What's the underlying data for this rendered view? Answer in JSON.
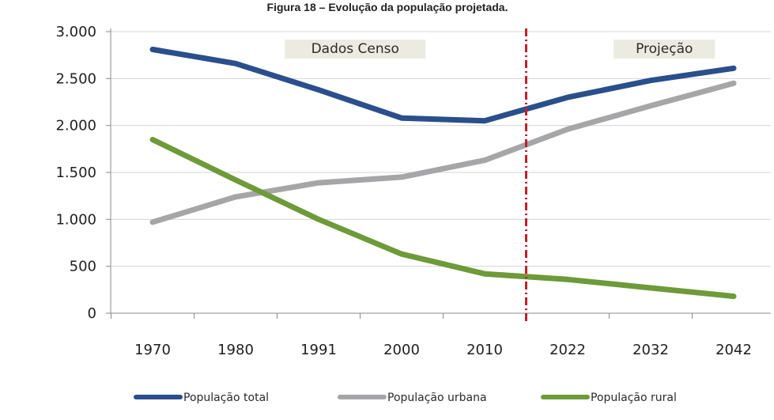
{
  "caption": "Figura 18 – Evolução da população projetada.",
  "chart_data": {
    "type": "line",
    "title": "",
    "xlabel": "",
    "ylabel": "",
    "categories": [
      "1970",
      "1980",
      "1991",
      "2000",
      "2010",
      "2022",
      "2032",
      "2042"
    ],
    "ylim": [
      0,
      3000
    ],
    "yticks": [
      0,
      500,
      1000,
      1500,
      2000,
      2500,
      3000
    ],
    "ytick_labels": [
      "0",
      "500",
      "1.000",
      "1.500",
      "2.000",
      "2.500",
      "3.000"
    ],
    "grid": true,
    "legend_position": "bottom",
    "series": [
      {
        "name": "População total",
        "color": "#2a4f8c",
        "values": [
          2810,
          2660,
          2380,
          2080,
          2050,
          2300,
          2480,
          2610
        ]
      },
      {
        "name": "População urbana",
        "color": "#a6a6a8",
        "values": [
          970,
          1240,
          1390,
          1450,
          1630,
          1960,
          2210,
          2450
        ]
      },
      {
        "name": "População rural",
        "color": "#6e9a3a",
        "values": [
          1850,
          1420,
          1000,
          630,
          420,
          360,
          270,
          180
        ]
      }
    ],
    "annotations": [
      {
        "label": "Dados Censo",
        "region": "census"
      },
      {
        "label": "Projeção",
        "region": "projection"
      }
    ],
    "divider": {
      "between": [
        "2010",
        "2022"
      ],
      "color": "#c0202a",
      "style": "dash-dot"
    }
  }
}
